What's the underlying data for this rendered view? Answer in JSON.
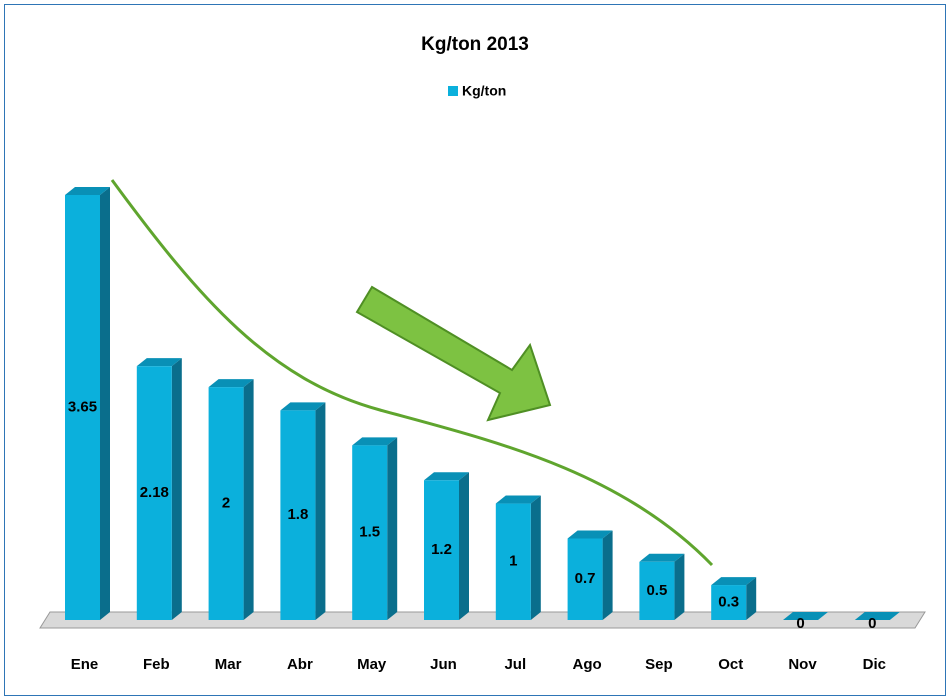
{
  "chart_data": {
    "type": "bar",
    "title": "Kg/ton 2013",
    "categories": [
      "Ene",
      "Feb",
      "Mar",
      "Abr",
      "May",
      "Jun",
      "Jul",
      "Ago",
      "Sep",
      "Oct",
      "Nov",
      "Dic"
    ],
    "series": [
      {
        "name": "Kg/ton",
        "color": "#0bb0dc",
        "values": [
          3.65,
          2.18,
          2,
          1.8,
          1.5,
          1.2,
          1,
          0.7,
          0.5,
          0.3,
          0,
          0
        ]
      }
    ],
    "legend": "top"
  }
}
